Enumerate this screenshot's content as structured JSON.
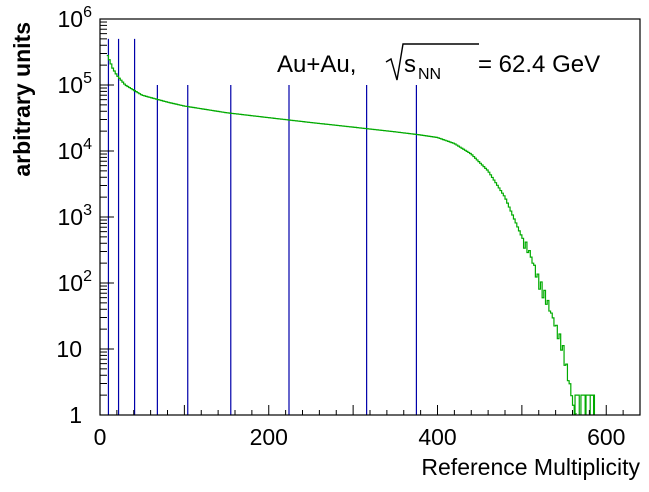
{
  "chart_data": {
    "type": "histogram",
    "xlabel": "Reference Multiplicity",
    "ylabel": "arbitrary units",
    "xlim": [
      0,
      640
    ],
    "ylim": [
      1,
      1000000
    ],
    "y_scale": "log",
    "x_ticks": [
      {
        "value": 0,
        "label": "0"
      },
      {
        "value": 200,
        "label": "200"
      },
      {
        "value": 400,
        "label": "400"
      },
      {
        "value": 600,
        "label": "600"
      }
    ],
    "y_ticks": [
      {
        "value": 1,
        "label": "1",
        "power": ""
      },
      {
        "value": 10,
        "label": "10",
        "power": ""
      },
      {
        "value": 100,
        "label": "10",
        "power": "2"
      },
      {
        "value": 1000,
        "label": "10",
        "power": "3"
      },
      {
        "value": 10000,
        "label": "10",
        "power": "4"
      },
      {
        "value": 100000,
        "label": "10",
        "power": "5"
      },
      {
        "value": 1000000,
        "label": "10",
        "power": "6"
      }
    ],
    "annotation": {
      "prefix": "Au+Au, ",
      "s": "s",
      "sub": "NN",
      "suffix": " = 62.4 GeV"
    },
    "grid": false,
    "series_color": "#00aa00",
    "cut_color": "#0000aa",
    "centrality_cuts": [
      {
        "x": 10,
        "top": 500000
      },
      {
        "x": 22,
        "top": 500000
      },
      {
        "x": 41,
        "top": 500000
      },
      {
        "x": 68,
        "top": 100000
      },
      {
        "x": 104,
        "top": 100000
      },
      {
        "x": 155,
        "top": 100000
      },
      {
        "x": 224,
        "top": 100000
      },
      {
        "x": 316,
        "top": 100000
      },
      {
        "x": 375,
        "top": 100000
      }
    ],
    "curve_points": [
      [
        8,
        300000
      ],
      [
        10,
        260000
      ],
      [
        15,
        180000
      ],
      [
        20,
        140000
      ],
      [
        30,
        100000
      ],
      [
        50,
        70000
      ],
      [
        80,
        55000
      ],
      [
        100,
        48000
      ],
      [
        150,
        38000
      ],
      [
        200,
        32000
      ],
      [
        250,
        27000
      ],
      [
        300,
        23000
      ],
      [
        350,
        19500
      ],
      [
        380,
        17500
      ],
      [
        400,
        16000
      ],
      [
        420,
        13000
      ],
      [
        440,
        9000
      ],
      [
        460,
        5000
      ],
      [
        480,
        2000
      ],
      [
        500,
        500
      ],
      [
        510,
        300
      ],
      [
        520,
        120
      ],
      [
        530,
        60
      ],
      [
        540,
        25
      ],
      [
        548,
        12
      ],
      [
        555,
        4
      ],
      [
        560,
        1.8
      ],
      [
        563,
        1
      ]
    ],
    "tail_bins": [
      {
        "x0": 563,
        "x1": 568,
        "y": 2
      },
      {
        "x0": 570,
        "x1": 575,
        "y": 2
      },
      {
        "x0": 576,
        "x1": 585,
        "y": 2
      },
      {
        "x0": 581,
        "x1": 586,
        "y": 2
      }
    ]
  }
}
